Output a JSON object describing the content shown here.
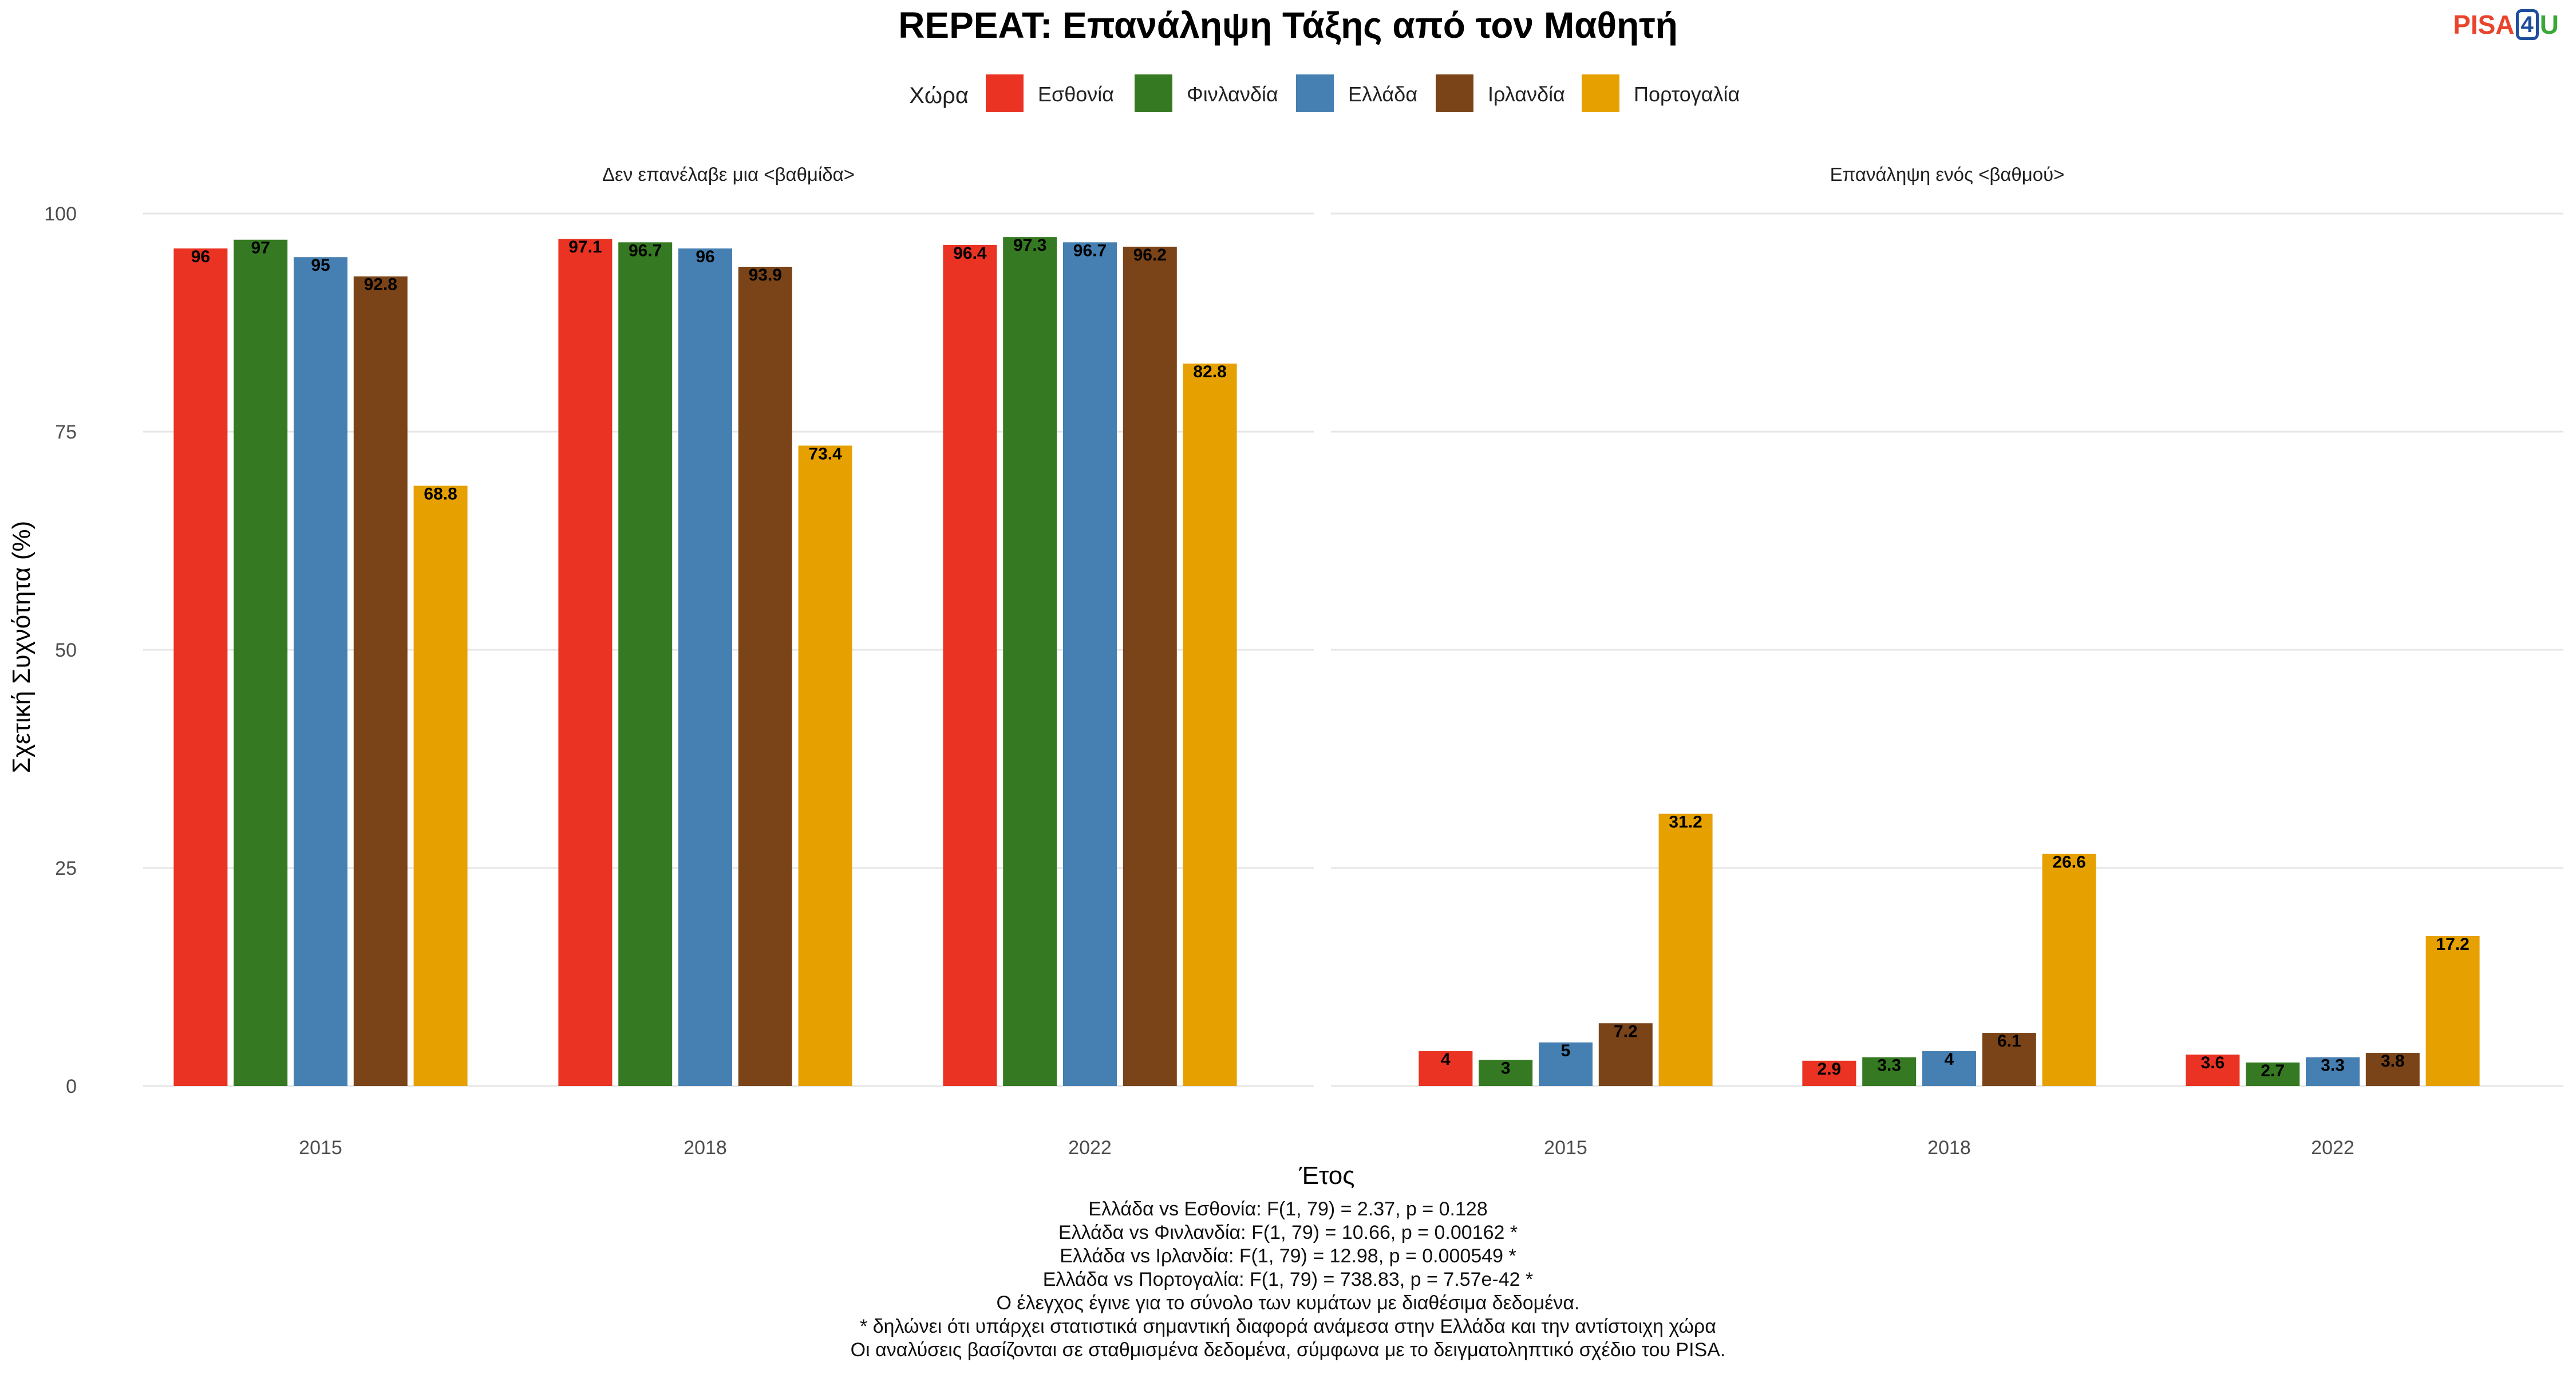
{
  "title": "REPEAT: Επανάληψη Τάξης από τον Μαθητή",
  "logo": {
    "part1": "PISA",
    "part2": "4",
    "part3": "U"
  },
  "legend": {
    "title": "Χώρα"
  },
  "chart_data": {
    "type": "bar",
    "xlabel": "Έτος",
    "ylabel": "Σχετική Συχνότητα (%)",
    "ylim": [
      0,
      100
    ],
    "yticks": [
      0,
      25,
      50,
      75,
      100
    ],
    "grid": true,
    "legend_position": "top",
    "categories": [
      "2015",
      "2018",
      "2022"
    ],
    "series_colors": [
      "#ea3323",
      "#357a22",
      "#4680b3",
      "#7a4418",
      "#e6a100"
    ],
    "panels": [
      {
        "title": "Δεν επανέλαβε μια <βαθμίδα>",
        "series": [
          {
            "name": "Εσθονία",
            "values": [
              96,
              97.1,
              96.4
            ],
            "labels": [
              "96",
              "97.1",
              "96.4"
            ]
          },
          {
            "name": "Φινλανδία",
            "values": [
              97,
              96.7,
              97.3
            ],
            "labels": [
              "97",
              "96.7",
              "97.3"
            ]
          },
          {
            "name": "Ελλάδα",
            "values": [
              95,
              96,
              96.7
            ],
            "labels": [
              "95",
              "96",
              "96.7"
            ]
          },
          {
            "name": "Ιρλανδία",
            "values": [
              92.8,
              93.9,
              96.2
            ],
            "labels": [
              "92.8",
              "93.9",
              "96.2"
            ]
          },
          {
            "name": "Πορτογαλία",
            "values": [
              68.8,
              73.4,
              82.8
            ],
            "labels": [
              "68.8",
              "73.4",
              "82.8"
            ]
          }
        ]
      },
      {
        "title": "Επανάληψη ενός <βαθμού>",
        "series": [
          {
            "name": "Εσθονία",
            "values": [
              4,
              2.9,
              3.6
            ],
            "labels": [
              "4",
              "2.9",
              "3.6"
            ]
          },
          {
            "name": "Φινλανδία",
            "values": [
              3,
              3.3,
              2.7
            ],
            "labels": [
              "3",
              "3.3",
              "2.7"
            ]
          },
          {
            "name": "Ελλάδα",
            "values": [
              5,
              4,
              3.3
            ],
            "labels": [
              "5",
              "4",
              "3.3"
            ]
          },
          {
            "name": "Ιρλανδία",
            "values": [
              7.2,
              6.1,
              3.8
            ],
            "labels": [
              "7.2",
              "6.1",
              "3.8"
            ]
          },
          {
            "name": "Πορτογαλία",
            "values": [
              31.2,
              26.6,
              17.2
            ],
            "labels": [
              "31.2",
              "26.6",
              "17.2"
            ]
          }
        ]
      }
    ]
  },
  "notes": [
    "Ελλάδα vs Εσθονία: F(1, 79) = 2.37, p = 0.128",
    "Ελλάδα vs Φινλανδία: F(1, 79) = 10.66, p = 0.00162 *",
    "Ελλάδα vs Ιρλανδία: F(1, 79) = 12.98, p = 0.000549 *",
    "Ελλάδα vs Πορτογαλία: F(1, 79) = 738.83, p = 7.57e-42 *",
    "Ο έλεγχος έγινε για το σύνολο των κυμάτων με διαθέσιμα δεδομένα.",
    "* δηλώνει ότι υπάρχει στατιστικά σημαντική διαφορά ανάμεσα στην Ελλάδα και την αντίστοιχη χώρα",
    "Οι αναλύσεις βασίζονται σε σταθμισμένα δεδομένα, σύμφωνα με το δειγματοληπτικό σχέδιο του PISA."
  ]
}
